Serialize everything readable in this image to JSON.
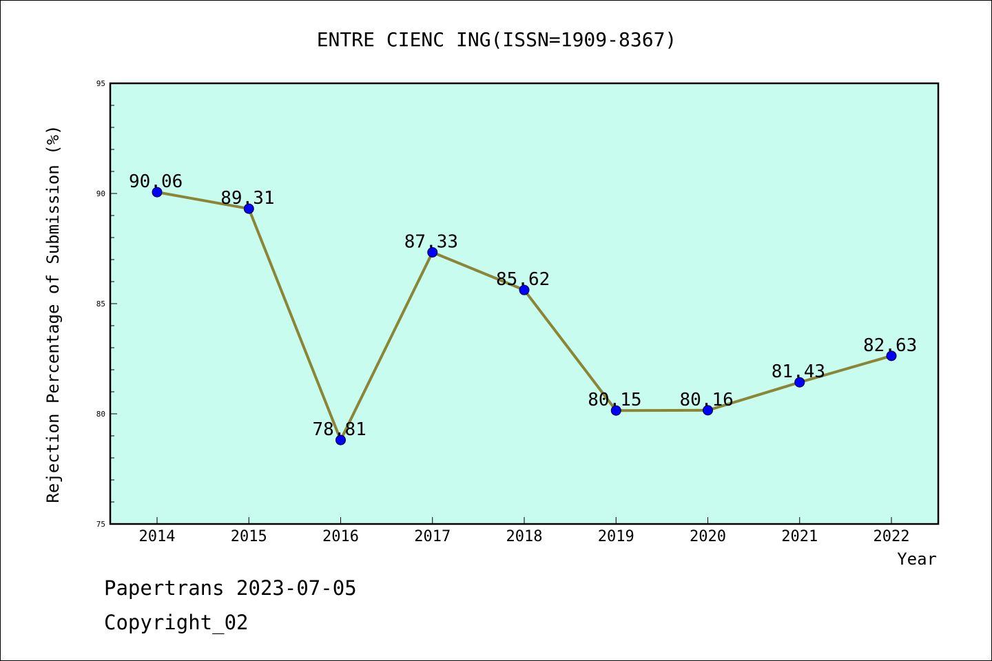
{
  "footer": {
    "date_text": "Papertrans 2023-07-05",
    "copyright_text": "Copyright_02"
  },
  "chart_data": {
    "type": "line",
    "title": "ENTRE CIENC ING(ISSN=1909-8367)",
    "xlabel": "Year",
    "ylabel": "Rejection Percentage of Submission (%)",
    "x": [
      "2014",
      "2015",
      "2016",
      "2017",
      "2018",
      "2019",
      "2020",
      "2021",
      "2022"
    ],
    "series": [
      {
        "values": [
          90.06,
          89.31,
          78.81,
          87.33,
          85.62,
          80.15,
          80.16,
          81.43,
          82.63
        ],
        "labels": [
          "90.06",
          "89.31",
          "78.81",
          "87.33",
          "85.62",
          "80.15",
          "80.16",
          "81.43",
          "82.63"
        ]
      }
    ],
    "ylim": [
      75,
      95
    ],
    "yticks": [
      "75",
      "80",
      "85",
      "90",
      "95"
    ],
    "grid": false,
    "legend": "none",
    "colors": {
      "plot_background": "#c8fcee",
      "line": "#8b8636",
      "marker": "#0000ff"
    }
  }
}
